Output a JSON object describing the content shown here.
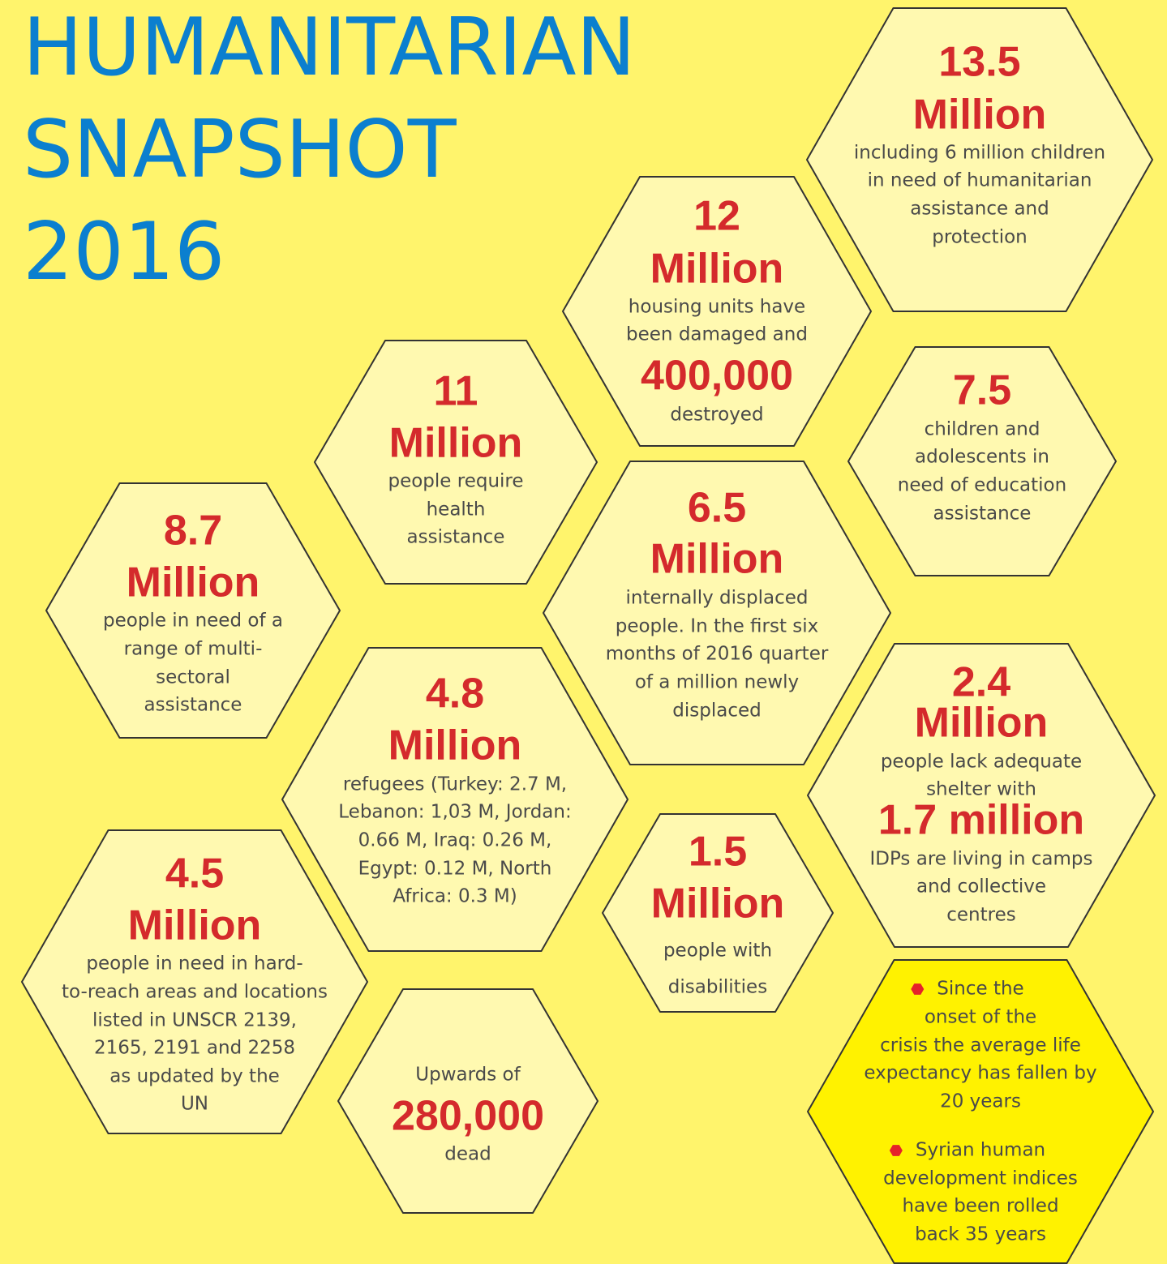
{
  "title": {
    "lines": [
      "HUMANITARIAN",
      "SNAPSHOT",
      "2016"
    ]
  },
  "hexagons": [
    {
      "lines": [
        {
          "kind": "figure",
          "text": "13.5"
        },
        {
          "kind": "figure",
          "text": "Million"
        },
        {
          "kind": "text",
          "text": "including 6 million children"
        },
        {
          "kind": "text",
          "text": "in need of humanitarian"
        },
        {
          "kind": "text",
          "text": "assistance and"
        },
        {
          "kind": "text",
          "text": "protection"
        }
      ]
    },
    {
      "lines": [
        {
          "kind": "figure",
          "text": "12"
        },
        {
          "kind": "figure",
          "text": "Million"
        },
        {
          "kind": "text",
          "text": "housing units have"
        },
        {
          "kind": "text",
          "text": "been damaged and"
        },
        {
          "kind": "figure",
          "text": "400,000"
        },
        {
          "kind": "text",
          "text": "destroyed"
        }
      ]
    },
    {
      "lines": [
        {
          "kind": "figure",
          "text": "11"
        },
        {
          "kind": "figure",
          "text": "Million"
        },
        {
          "kind": "text",
          "text": "people require"
        },
        {
          "kind": "text",
          "text": "health"
        },
        {
          "kind": "text",
          "text": "assistance"
        }
      ]
    },
    {
      "lines": [
        {
          "kind": "figure",
          "text": "7.5"
        },
        {
          "kind": "text",
          "text": "children and"
        },
        {
          "kind": "text",
          "text": "adolescents in"
        },
        {
          "kind": "text",
          "text": "need of education"
        },
        {
          "kind": "text",
          "text": "assistance"
        }
      ]
    },
    {
      "lines": [
        {
          "kind": "figure",
          "text": "8.7"
        },
        {
          "kind": "figure",
          "text": "Million"
        },
        {
          "kind": "text",
          "text": "people in need of a"
        },
        {
          "kind": "text",
          "text": "range of multi-"
        },
        {
          "kind": "text",
          "text": "sectoral"
        },
        {
          "kind": "text",
          "text": "assistance"
        }
      ]
    },
    {
      "lines": [
        {
          "kind": "figure",
          "text": "6.5"
        },
        {
          "kind": "figure",
          "text": "Million"
        },
        {
          "kind": "text",
          "text": "internally displaced"
        },
        {
          "kind": "text",
          "text": "people. In the first six"
        },
        {
          "kind": "text",
          "text": "months of 2016 quarter"
        },
        {
          "kind": "text",
          "text": "of a million newly"
        },
        {
          "kind": "text",
          "text": "displaced"
        }
      ]
    },
    {
      "lines": [
        {
          "kind": "figure",
          "text": "4.8"
        },
        {
          "kind": "figure",
          "text": "Million"
        },
        {
          "kind": "text",
          "text": "refugees (Turkey: 2.7 M,"
        },
        {
          "kind": "text",
          "text": "Lebanon: 1,03 M, Jordan:"
        },
        {
          "kind": "text",
          "text": "0.66 M, Iraq: 0.26 M,"
        },
        {
          "kind": "text",
          "text": "Egypt: 0.12 M, North"
        },
        {
          "kind": "text",
          "text": "Africa: 0.3 M)"
        }
      ]
    },
    {
      "lines": [
        {
          "kind": "figure",
          "text": "2.4"
        },
        {
          "kind": "figure",
          "text": "Million"
        },
        {
          "kind": "text",
          "text": "people lack adequate"
        },
        {
          "kind": "text",
          "text": "shelter with"
        },
        {
          "kind": "figure",
          "text": "1.7 million"
        },
        {
          "kind": "text",
          "text": "IDPs are living in camps"
        },
        {
          "kind": "text",
          "text": "and collective"
        },
        {
          "kind": "text",
          "text": "centres"
        }
      ]
    },
    {
      "lines": [
        {
          "kind": "figure",
          "text": "1.5"
        },
        {
          "kind": "figure",
          "text": "Million"
        },
        {
          "kind": "text",
          "text": "people with"
        },
        {
          "kind": "text",
          "text": "disabilities"
        }
      ]
    },
    {
      "lines": [
        {
          "kind": "figure",
          "text": "4.5"
        },
        {
          "kind": "figure",
          "text": "Million"
        },
        {
          "kind": "text",
          "text": "people in need in hard-"
        },
        {
          "kind": "text",
          "text": "to-reach areas and  locations"
        },
        {
          "kind": "text",
          "text": "listed in UNSCR 2139,"
        },
        {
          "kind": "text",
          "text": "2165, 2191 and 2258"
        },
        {
          "kind": "text",
          "text": "as updated by the"
        },
        {
          "kind": "text",
          "text": "UN"
        }
      ]
    },
    {
      "lines": [
        {
          "kind": "text",
          "text": "Upwards of"
        },
        {
          "kind": "figure",
          "text": "280,000"
        },
        {
          "kind": "text",
          "text": "dead"
        }
      ]
    },
    {
      "lines": [
        {
          "kind": "bullet",
          "text": "Since the"
        },
        {
          "kind": "text",
          "text": "onset of the"
        },
        {
          "kind": "text",
          "text": "crisis the average life"
        },
        {
          "kind": "text",
          "text": "expectancy has fallen by"
        },
        {
          "kind": "text",
          "text": "20 years"
        },
        {
          "kind": "bullet",
          "text": "Syrian human"
        },
        {
          "kind": "text",
          "text": "development indices"
        },
        {
          "kind": "text",
          "text": "have been rolled"
        },
        {
          "kind": "text",
          "text": "back 35 years"
        }
      ]
    }
  ]
}
